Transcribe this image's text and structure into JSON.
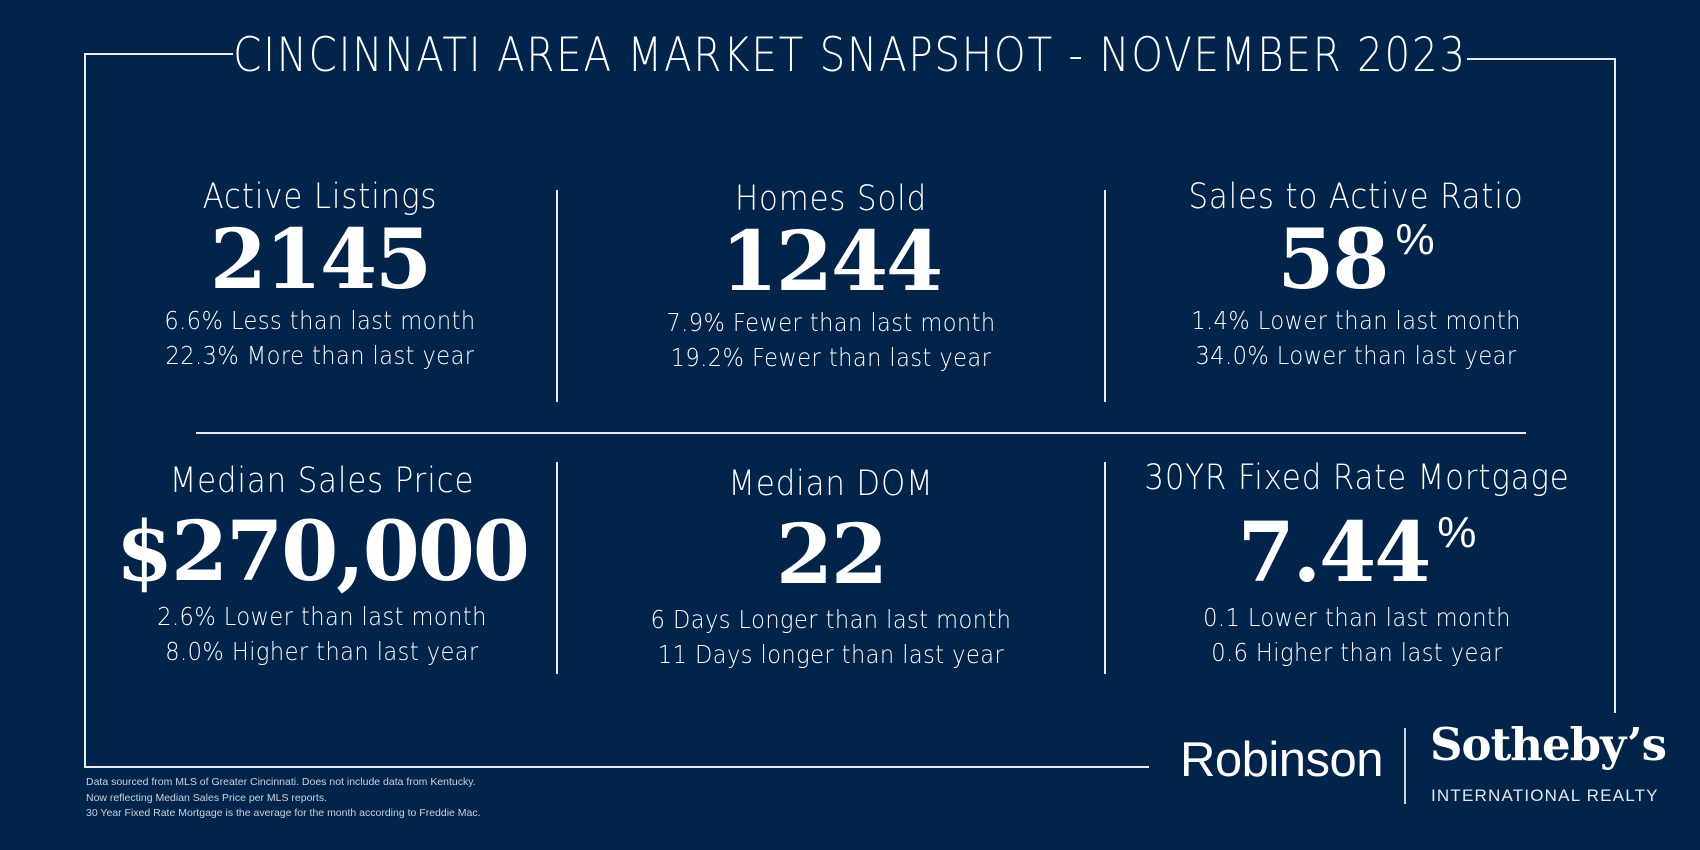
{
  "title": "CINCINNATI AREA MARKET SNAPSHOT - NOVEMBER 2023",
  "stats": [
    {
      "label": "Active Listings",
      "value": "2145",
      "unit": "",
      "line1": "6.6% Less than last month",
      "line2": "22.3% More than last year"
    },
    {
      "label": "Homes Sold",
      "value": "1244",
      "unit": "",
      "line1": "7.9% Fewer than last month",
      "line2": "19.2% Fewer than last year"
    },
    {
      "label": "Sales to Active Ratio",
      "value": "58",
      "unit": "%",
      "line1": "1.4% Lower than last month",
      "line2": "34.0% Lower than last year"
    },
    {
      "label": "Median Sales Price",
      "value": "$270,000",
      "unit": "",
      "line1": "2.6% Lower than last month",
      "line2": "8.0% Higher than last year"
    },
    {
      "label": "Median DOM",
      "value": "22",
      "unit": "",
      "line1": "6 Days Longer than last month",
      "line2": "11 Days longer than last year"
    },
    {
      "label": "30YR Fixed Rate Mortgage",
      "value": "7.44",
      "unit": "%",
      "line1": "0.1 Lower than last month",
      "line2": "0.6 Higher than last year"
    }
  ],
  "footnote": {
    "line1": "Data sourced from MLS of Greater Cincinnati.  Does not include data from Kentucky.",
    "line2": "Now reflecting Median Sales Price per MLS reports.",
    "line3": "30 Year Fixed Rate Mortgage is the average for the month according to Freddie Mac."
  },
  "logo": {
    "robinson": "Robinson",
    "sothebys": "Sotheby’s",
    "tagline": "INTERNATIONAL REALTY"
  },
  "colors": {
    "background": "#02234a",
    "text": "#ffffff",
    "lines": "#e9edf3"
  }
}
